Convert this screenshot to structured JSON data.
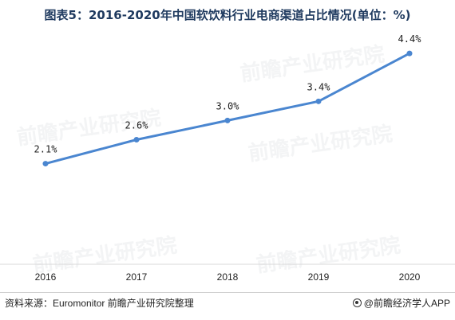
{
  "title": "图表5：2016-2020年中国软饮料行业电商渠道占比情况(单位：%)",
  "chart_data": {
    "type": "line",
    "categories": [
      "2016",
      "2017",
      "2018",
      "2019",
      "2020"
    ],
    "series": [
      {
        "values": [
          2.1,
          2.6,
          3.0,
          3.4,
          4.4
        ]
      }
    ],
    "data_labels": [
      "2.1%",
      "2.6%",
      "3.0%",
      "3.4%",
      "4.4%"
    ],
    "ylim": [
      0,
      5.4
    ],
    "grid": false,
    "legend": "none",
    "line_color": "#4a86d0"
  },
  "watermark": "前瞻产业研究院",
  "footer": {
    "source": "资料来源：Euromonitor 前瞻产业研究院整理",
    "brand": "@前瞻经济学人APP"
  }
}
